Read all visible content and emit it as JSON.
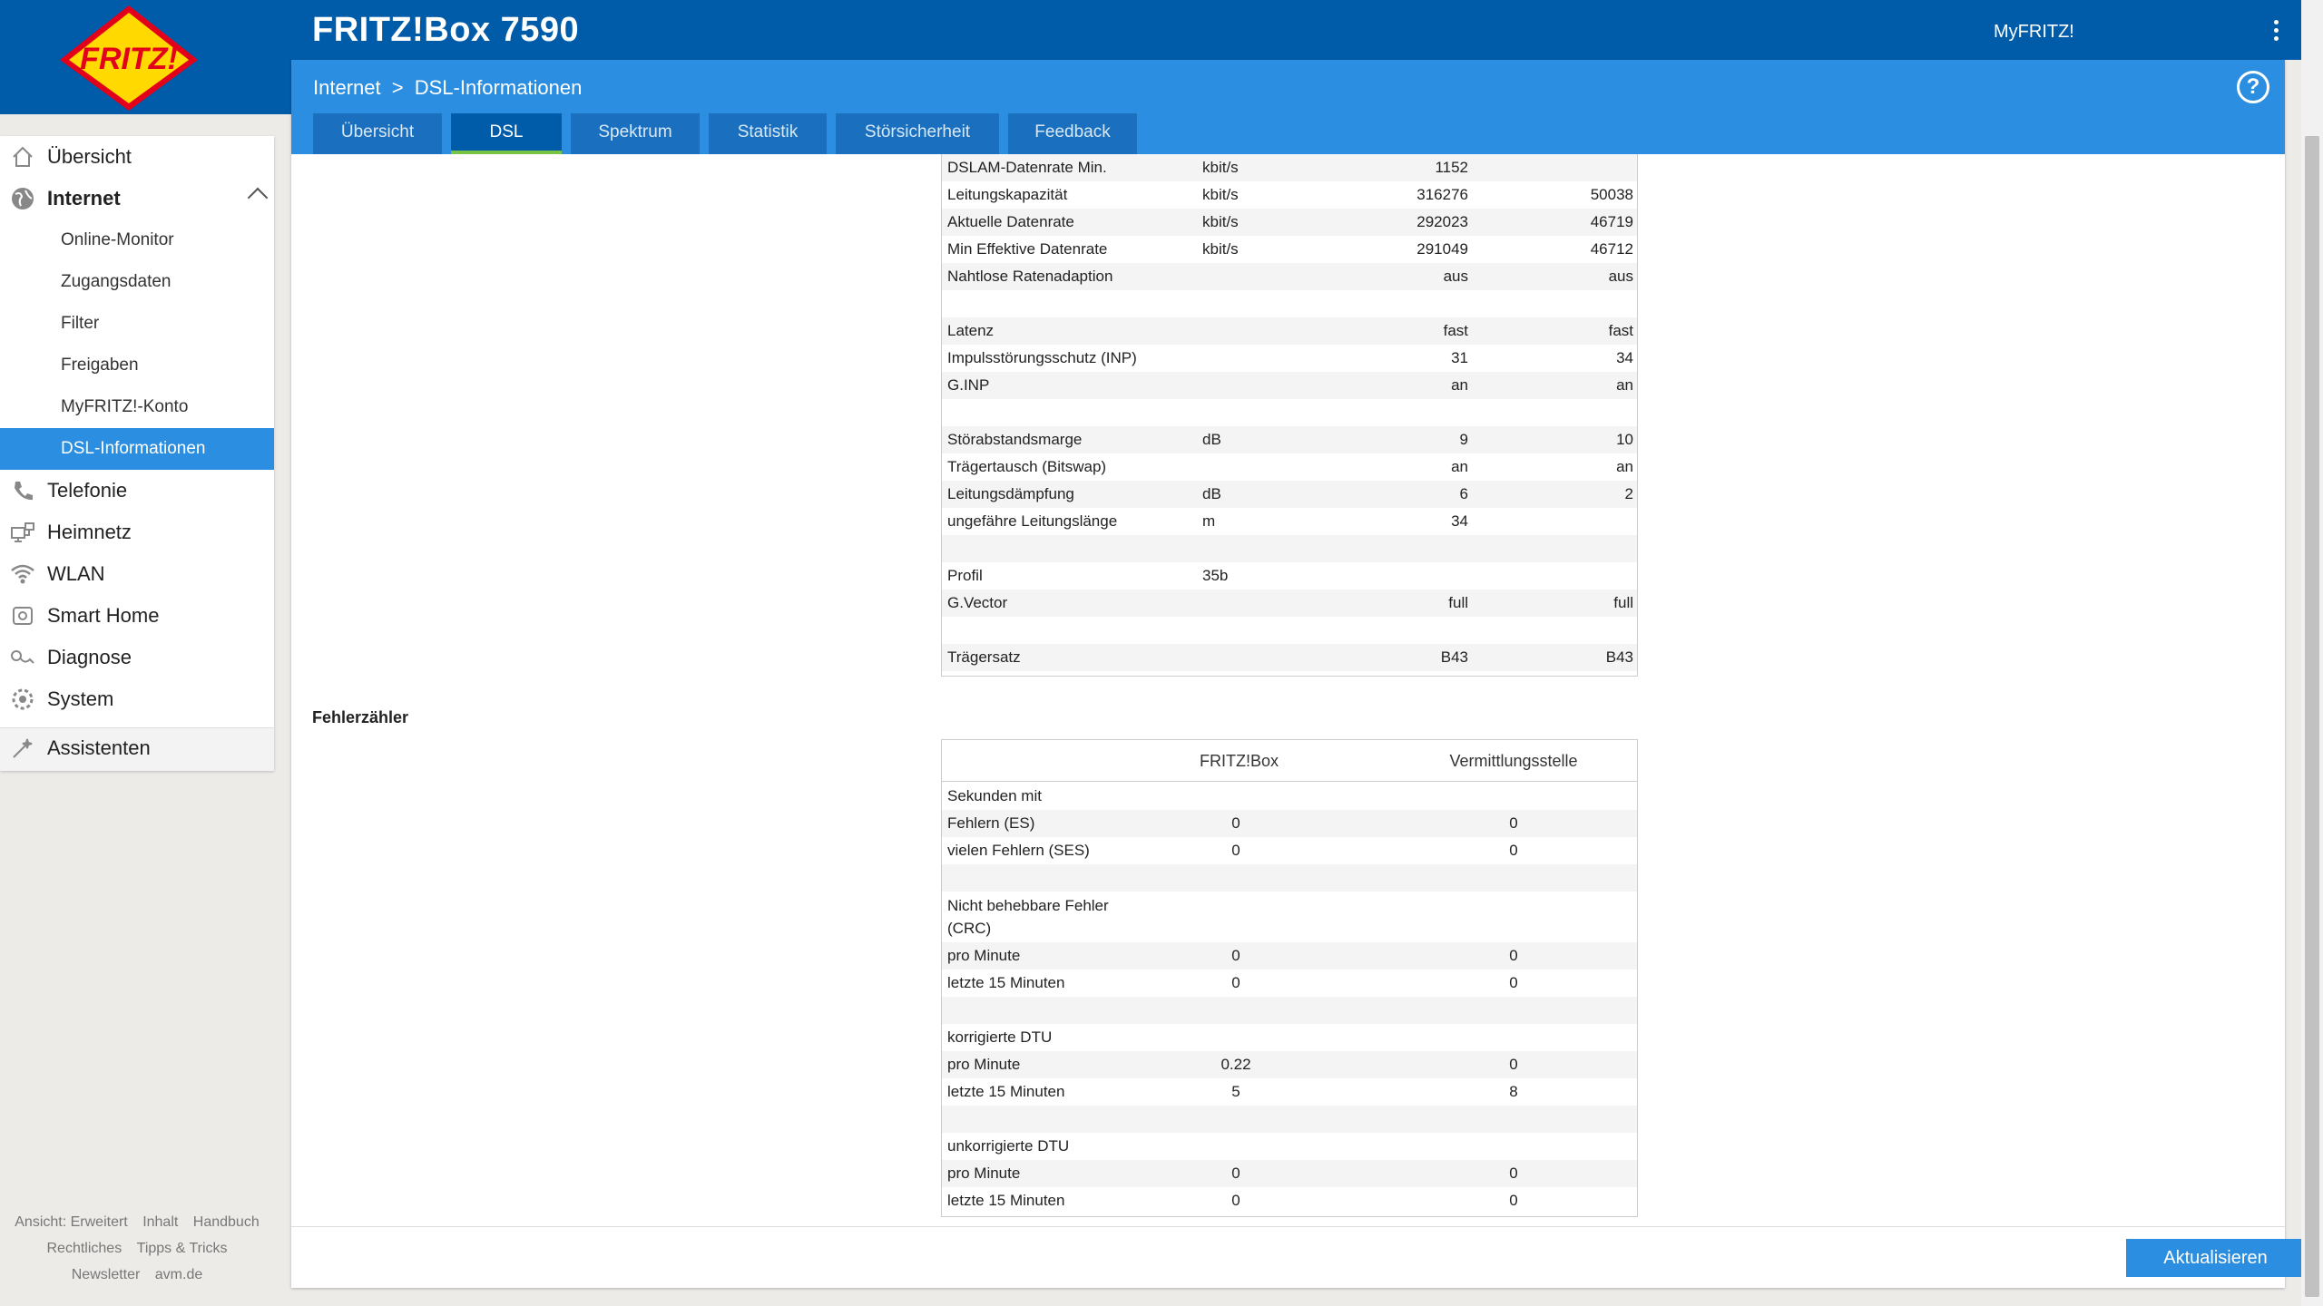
{
  "app": {
    "title": "FRITZ!Box 7590",
    "myfritz_label": "MyFRITZ!",
    "logo_text": "FRITZ!"
  },
  "breadcrumb": {
    "parent": "Internet",
    "separator": ">",
    "current": "DSL-Informationen"
  },
  "tabs": [
    {
      "label": "Übersicht",
      "active": false
    },
    {
      "label": "DSL",
      "active": true
    },
    {
      "label": "Spektrum",
      "active": false
    },
    {
      "label": "Statistik",
      "active": false
    },
    {
      "label": "Störsicherheit",
      "active": false
    },
    {
      "label": "Feedback",
      "active": false
    }
  ],
  "sidebar": {
    "items": [
      {
        "label": "Übersicht",
        "icon": "home-icon"
      },
      {
        "label": "Internet",
        "icon": "globe-icon",
        "expanded": true
      },
      {
        "label": "Telefonie",
        "icon": "phone-icon"
      },
      {
        "label": "Heimnetz",
        "icon": "network-icon"
      },
      {
        "label": "WLAN",
        "icon": "wifi-icon"
      },
      {
        "label": "Smart Home",
        "icon": "smarthome-icon"
      },
      {
        "label": "Diagnose",
        "icon": "diagnose-icon"
      },
      {
        "label": "System",
        "icon": "system-icon"
      },
      {
        "label": "Assistenten",
        "icon": "wizard-icon"
      }
    ],
    "sub_items": [
      {
        "label": "Online-Monitor"
      },
      {
        "label": "Zugangsdaten"
      },
      {
        "label": "Filter"
      },
      {
        "label": "Freigaben"
      },
      {
        "label": "MyFRITZ!-Konto"
      },
      {
        "label": "DSL-Informationen",
        "active": true
      }
    ]
  },
  "footer": {
    "links": [
      "Ansicht: Erweitert",
      "Inhalt",
      "Handbuch",
      "Rechtliches",
      "Tipps & Tricks",
      "Newsletter",
      "avm.de"
    ]
  },
  "dsl_table": {
    "rows": [
      {
        "label": "DSLAM-Datenrate Min.",
        "unit": "kbit/s",
        "v1": "1152",
        "v2": ""
      },
      {
        "label": "Leitungskapazität",
        "unit": "kbit/s",
        "v1": "316276",
        "v2": "50038"
      },
      {
        "label": "Aktuelle Datenrate",
        "unit": "kbit/s",
        "v1": "292023",
        "v2": "46719"
      },
      {
        "label": "Min Effektive Datenrate",
        "unit": "kbit/s",
        "v1": "291049",
        "v2": "46712"
      },
      {
        "label": "Nahtlose Ratenadaption",
        "unit": "",
        "v1": "aus",
        "v2": "aus"
      },
      {
        "label": "",
        "unit": "",
        "v1": "",
        "v2": ""
      },
      {
        "label": "Latenz",
        "unit": "",
        "v1": "fast",
        "v2": "fast"
      },
      {
        "label": "Impulsstörungsschutz (INP)",
        "unit": "",
        "v1": "31",
        "v2": "34"
      },
      {
        "label": "G.INP",
        "unit": "",
        "v1": "an",
        "v2": "an"
      },
      {
        "label": "",
        "unit": "",
        "v1": "",
        "v2": ""
      },
      {
        "label": "Störabstandsmarge",
        "unit": "dB",
        "v1": "9",
        "v2": "10"
      },
      {
        "label": "Trägertausch (Bitswap)",
        "unit": "",
        "v1": "an",
        "v2": "an"
      },
      {
        "label": "Leitungsdämpfung",
        "unit": "dB",
        "v1": "6",
        "v2": "2"
      },
      {
        "label": "ungefähre Leitungslänge",
        "unit": "m",
        "v1": "34",
        "v2": ""
      },
      {
        "label": "",
        "unit": "",
        "v1": "",
        "v2": ""
      },
      {
        "label": "Profil",
        "unit": "35b",
        "v1": "",
        "v2": ""
      },
      {
        "label": "G.Vector",
        "unit": "",
        "v1": "full",
        "v2": "full"
      },
      {
        "label": "",
        "unit": "",
        "v1": "",
        "v2": ""
      },
      {
        "label": "Trägersatz",
        "unit": "",
        "v1": "B43",
        "v2": "B43"
      }
    ]
  },
  "error_section": {
    "title": "Fehlerzähler",
    "col1": "FRITZ!Box",
    "col2": "Vermittlungsstelle",
    "rows": [
      {
        "label": "Sekunden mit",
        "v1": "",
        "v2": ""
      },
      {
        "label": "Fehlern (ES)",
        "v1": "0",
        "v2": "0"
      },
      {
        "label": "vielen Fehlern (SES)",
        "v1": "0",
        "v2": "0"
      },
      {
        "label": "",
        "v1": "",
        "v2": ""
      },
      {
        "label": "Nicht behebbare Fehler (CRC)",
        "v1": "",
        "v2": ""
      },
      {
        "label": "pro Minute",
        "v1": "0",
        "v2": "0"
      },
      {
        "label": "letzte 15 Minuten",
        "v1": "0",
        "v2": "0"
      },
      {
        "label": "",
        "v1": "",
        "v2": ""
      },
      {
        "label": "korrigierte DTU",
        "v1": "",
        "v2": ""
      },
      {
        "label": "pro Minute",
        "v1": "0.22",
        "v2": "0"
      },
      {
        "label": "letzte 15 Minuten",
        "v1": "5",
        "v2": "8"
      },
      {
        "label": "",
        "v1": "",
        "v2": ""
      },
      {
        "label": "unkorrigierte DTU",
        "v1": "",
        "v2": ""
      },
      {
        "label": "pro Minute",
        "v1": "0",
        "v2": "0"
      },
      {
        "label": "letzte 15 Minuten",
        "v1": "0",
        "v2": "0"
      }
    ]
  },
  "actions": {
    "refresh_label": "Aktualisieren"
  },
  "colors": {
    "header": "#005ca9",
    "subheader": "#2b8ee0",
    "active_tab_underline": "#78c244",
    "button": "#2b8ee0"
  }
}
